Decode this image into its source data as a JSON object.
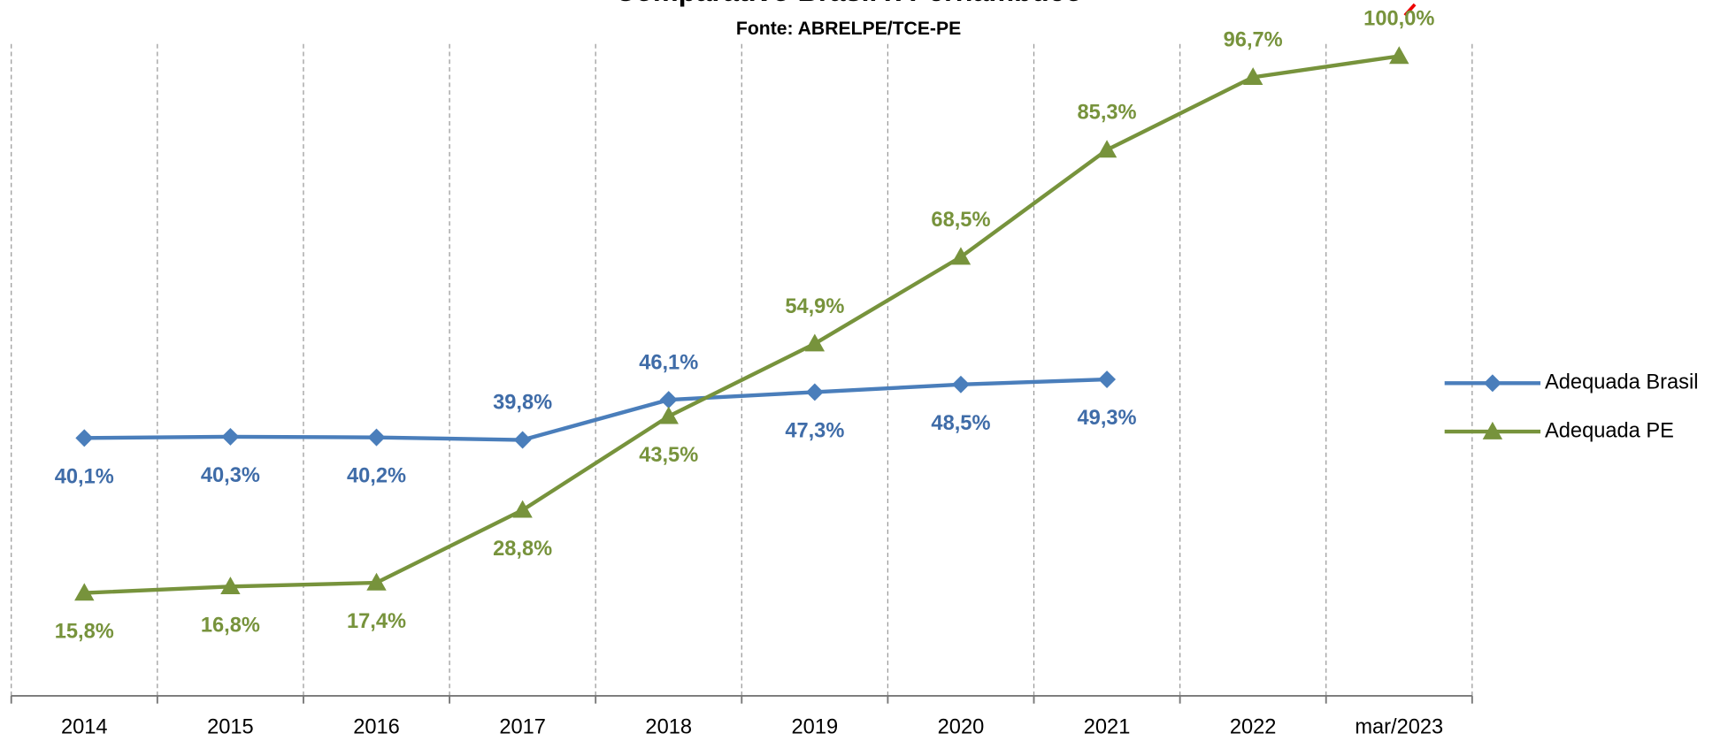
{
  "chart_data": {
    "type": "line",
    "title": "Comparativo Brasil x Pernambuco",
    "subtitle": "Fonte: ABRELPE/TCE-PE",
    "categories": [
      "2014",
      "2015",
      "2016",
      "2017",
      "2018",
      "2019",
      "2020",
      "2021",
      "2022",
      "mar/2023"
    ],
    "series": [
      {
        "name": "Adequada Brasil",
        "color": "#4a7ebb",
        "marker": "diamond",
        "values": [
          40.1,
          40.3,
          40.2,
          39.8,
          46.1,
          47.3,
          48.5,
          49.3,
          null,
          null
        ],
        "value_labels": [
          "40,1%",
          "40,3%",
          "40,2%",
          "39,8%",
          "46,1%",
          "47,3%",
          "48,5%",
          "49,3%",
          null,
          null
        ]
      },
      {
        "name": "Adequada PE",
        "color": "#77933c",
        "marker": "triangle",
        "values": [
          15.8,
          16.8,
          17.4,
          28.8,
          43.5,
          54.9,
          68.5,
          85.3,
          96.7,
          100.0
        ],
        "value_labels": [
          "15,8%",
          "16,8%",
          "17,4%",
          "28,8%",
          "43,5%",
          "54,9%",
          "68,5%",
          "85,3%",
          "96,7%",
          "100,0%"
        ]
      }
    ],
    "ylim": [
      0,
      100
    ],
    "grid": true,
    "legend": "right"
  }
}
